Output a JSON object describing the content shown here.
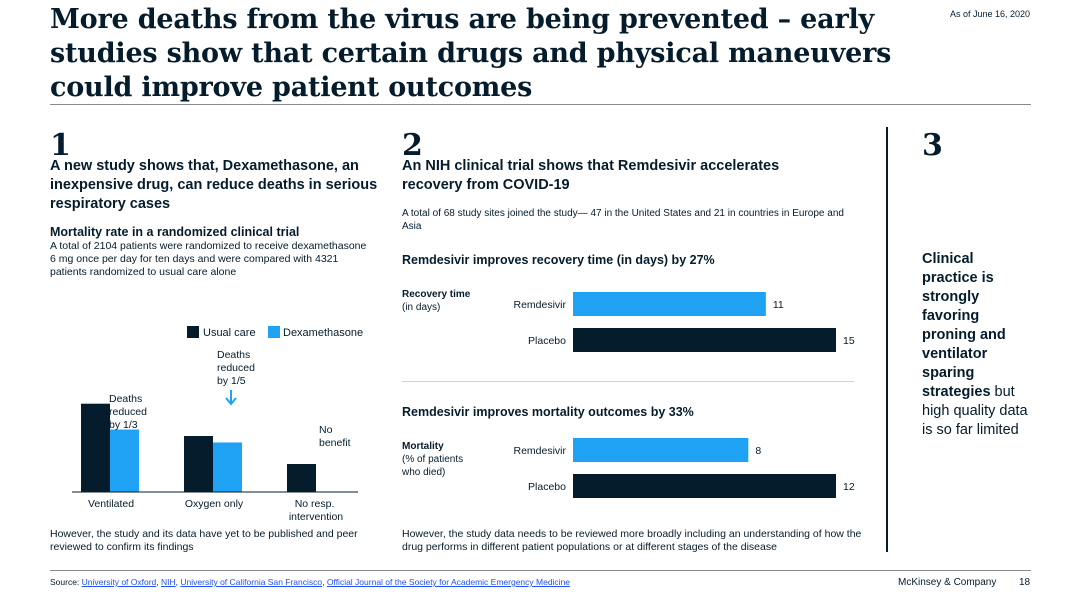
{
  "header": {
    "title": "More deaths from the virus are being prevented – early studies show that certain drugs and physical maneuvers could improve patient outcomes",
    "as_of": "As of June 16, 2020"
  },
  "section1": {
    "number": "1",
    "heading": "A new study shows that, Dexamethasone, an inexpensive drug, can reduce deaths in serious respiratory cases",
    "subheading": "Mortality rate in a randomized clinical trial",
    "description": "A total of 2104 patients were randomized to receive dexamethasone 6 mg once per day for ten days and were compared with 4321 patients randomized to usual care alone",
    "footnote": "However, the study and its data have yet to be published and peer reviewed to confirm its findings"
  },
  "section2": {
    "number": "2",
    "heading": "An NIH clinical trial shows that Remdesivir accelerates recovery from COVID-19",
    "description": "A total of 68 study sites joined the study— 47 in the United States and 21 in countries in Europe and Asia",
    "footnote": "However, the study data needs to be reviewed more broadly including an understanding of how the drug performs in different patient populations or at different stages of the disease"
  },
  "section3": {
    "number": "3",
    "callout_bold": "Clinical practice is strongly favoring proning and ventilator sparing strategies",
    "callout_rest": " but high quality data is so far limited"
  },
  "footer": {
    "source_label": "Source: ",
    "sources": [
      "University of Oxford",
      "NIH",
      "University of California San Francisco",
      "Official Journal of the Society for Academic Emergency Medicine"
    ],
    "separator": ", ",
    "company": "McKinsey & Company",
    "page": "18"
  },
  "colors": {
    "navy": "#051c2c",
    "blue": "#1fa2f4",
    "link": "#2251ff"
  },
  "chart_data": [
    {
      "type": "bar",
      "title": "Mortality rate in a randomized clinical trial",
      "categories": [
        "Ventilated",
        "Oxygen only",
        "No resp. intervention"
      ],
      "series": [
        {
          "name": "Usual care",
          "values": [
            0.41,
            0.26,
            0.13
          ]
        },
        {
          "name": "Dexamethasone",
          "values": [
            0.29,
            0.23,
            null
          ]
        }
      ],
      "legend": "top-right",
      "annotations": [
        {
          "category": "Ventilated",
          "text": "Deaths reduced by 1/3"
        },
        {
          "category": "Oxygen only",
          "text": "Deaths reduced by 1/5"
        },
        {
          "category": "No resp. intervention",
          "text": "No benefit"
        }
      ],
      "grid": false,
      "note": "relative scale estimated from bar heights"
    },
    {
      "type": "bar",
      "orientation": "horizontal",
      "title": "Remdesivir improves recovery time (in days) by 27%",
      "ylabel": "Recovery time (in days)",
      "categories": [
        "Remdesivir",
        "Placebo"
      ],
      "values": [
        11,
        15
      ],
      "xlim": [
        0,
        15
      ]
    },
    {
      "type": "bar",
      "orientation": "horizontal",
      "title": "Remdesivir improves mortality outcomes by 33%",
      "ylabel": "Mortality (% of patients who died)",
      "categories": [
        "Remdesivir",
        "Placebo"
      ],
      "values": [
        8,
        12
      ],
      "xlim": [
        0,
        12
      ]
    }
  ]
}
